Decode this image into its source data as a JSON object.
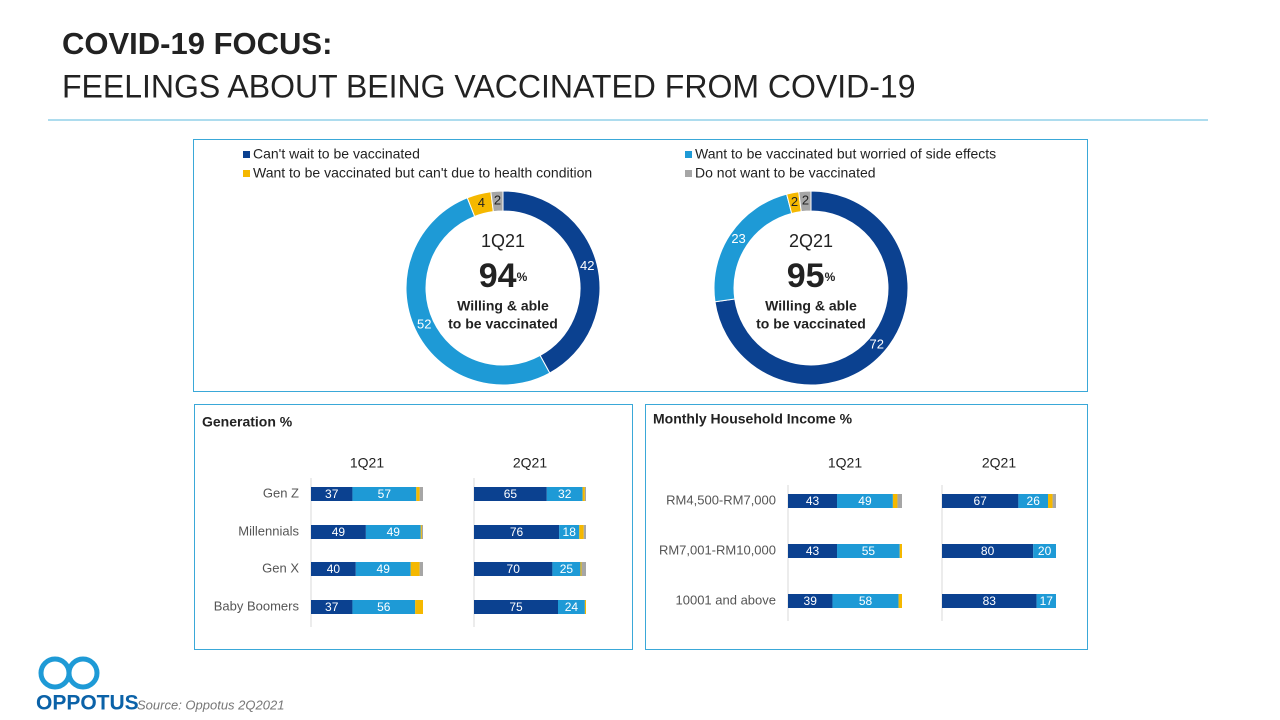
{
  "header": {
    "title": "COVID-19 FOCUS:",
    "subtitle": "FEELINGS ABOUT BEING VACCINATED FROM COVID-19"
  },
  "chart_data": [
    {
      "type": "donut",
      "series": [
        {
          "name": "Can't wait to be vaccinated",
          "color": "#0b4190",
          "label_color": "#ffffff"
        },
        {
          "name": "Want to be vaccinated but worried of side effects",
          "color": "#1e9ad6",
          "label_color": "#ffffff"
        },
        {
          "name": "Want to be vaccinated but can't due to health condition",
          "color": "#f5b800",
          "label_color": "#222222"
        },
        {
          "name": "Do not want to be vaccinated",
          "color": "#a6a6a6",
          "label_color": "#222222"
        }
      ],
      "panels": [
        {
          "label": "1Q21",
          "values": [
            42,
            52,
            4,
            2
          ],
          "center_value": 94,
          "center_unit": "%",
          "center_text": [
            "Willing & able",
            "to be vaccinated"
          ]
        },
        {
          "label": "2Q21",
          "values": [
            72,
            23,
            2,
            2
          ],
          "center_value": 95,
          "center_unit": "%",
          "center_text": [
            "Willing & able",
            "to be vaccinated"
          ]
        }
      ]
    },
    {
      "type": "bar",
      "title": "Generation %",
      "categories": [
        "Gen Z",
        "Millennials",
        "Gen X",
        "Baby Boomers"
      ],
      "groups": [
        {
          "name": "1Q21",
          "series": [
            [
              37,
              49,
              40,
              37
            ],
            [
              57,
              49,
              49,
              56
            ],
            [
              3,
              1,
              8,
              7
            ],
            [
              3,
              1,
              3,
              0
            ]
          ]
        },
        {
          "name": "2Q21",
          "series": [
            [
              65,
              76,
              70,
              75
            ],
            [
              32,
              18,
              25,
              24
            ],
            [
              2,
              4,
              1,
              1
            ],
            [
              1,
              2,
              4,
              0
            ]
          ]
        }
      ]
    },
    {
      "type": "bar",
      "title": "Monthly Household Income %",
      "categories": [
        "RM4,500-RM7,000",
        "RM7,001-RM10,000",
        "10001 and above"
      ],
      "groups": [
        {
          "name": "1Q21",
          "series": [
            [
              43,
              43,
              39
            ],
            [
              49,
              55,
              58
            ],
            [
              4,
              2,
              3
            ],
            [
              4,
              0,
              0
            ]
          ]
        },
        {
          "name": "2Q21",
          "series": [
            [
              67,
              80,
              83
            ],
            [
              26,
              20,
              17
            ],
            [
              4,
              0,
              0
            ],
            [
              3,
              0,
              0
            ]
          ]
        }
      ]
    }
  ],
  "footer": {
    "source": "Source: Oppotus 2Q2021",
    "logo": "OPPOTUS"
  }
}
